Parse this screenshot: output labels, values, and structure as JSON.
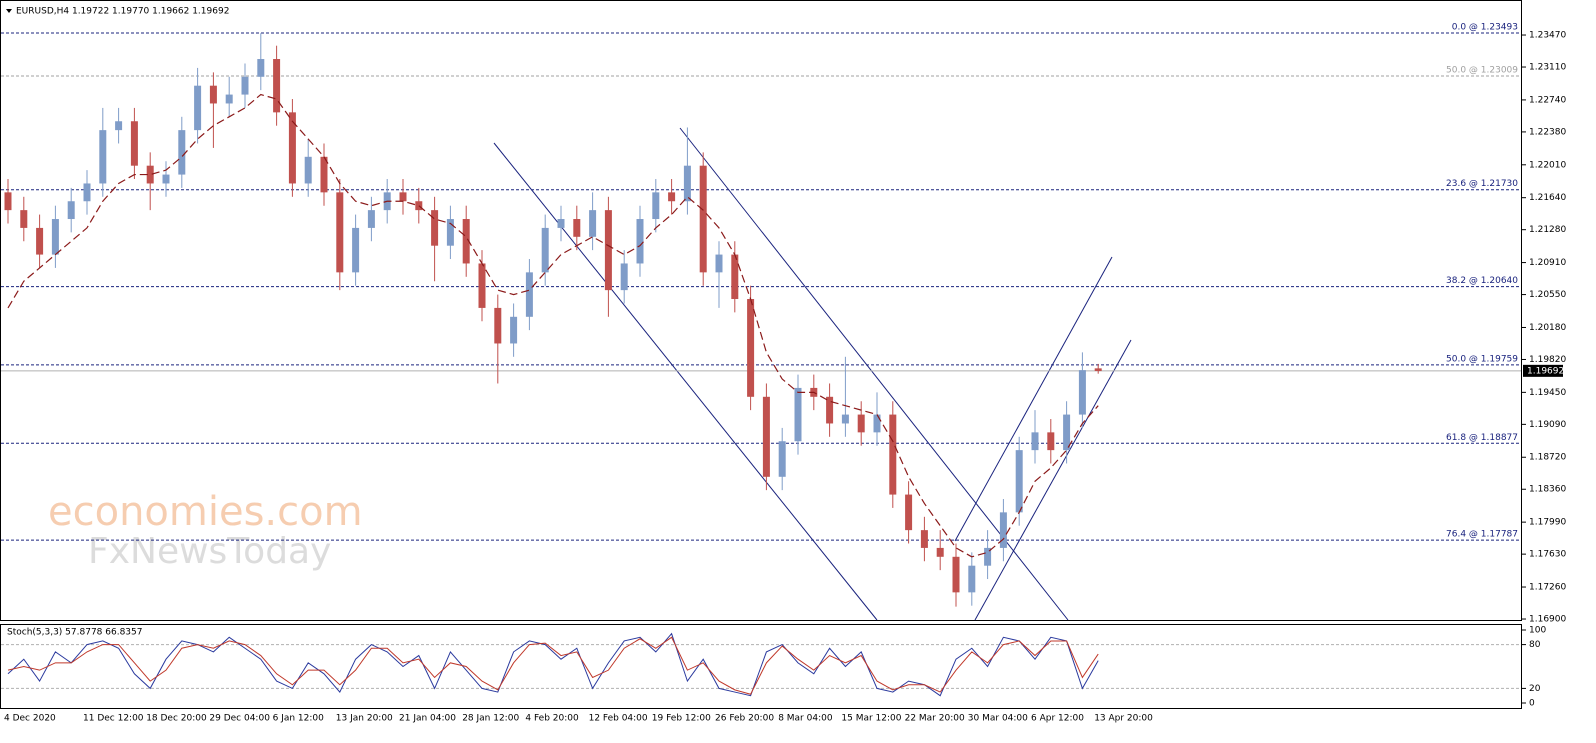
{
  "chart_data": [
    {
      "type": "candlestick",
      "title": "EURUSD,H4  1.19722 1.19770 1.19662 1.19692",
      "watermark": [
        "economies.com",
        "FxNewsToday"
      ],
      "categories": [
        "4 Dec 2020",
        null,
        null,
        null,
        null,
        "11 Dec 12:00",
        null,
        null,
        null,
        "18 Dec 20:00",
        null,
        null,
        null,
        "29 Dec 04:00",
        null,
        null,
        null,
        "6 Jan 12:00",
        null,
        null,
        null,
        "13 Jan 20:00",
        null,
        null,
        null,
        "21 Jan 04:00",
        null,
        null,
        null,
        "28 Jan 12:00",
        null,
        null,
        null,
        "4 Feb 20:00",
        null,
        null,
        null,
        "12 Feb 04:00",
        null,
        null,
        null,
        "19 Feb 12:00",
        null,
        null,
        null,
        "26 Feb 20:00",
        null,
        null,
        null,
        "8 Mar 04:00",
        null,
        null,
        null,
        "15 Mar 12:00",
        null,
        null,
        null,
        "22 Mar 20:00",
        null,
        null,
        null,
        "30 Mar 04:00",
        null,
        null,
        null,
        "6 Apr 12:00",
        null,
        null,
        null,
        "13 Apr 20:00"
      ],
      "open": [
        1.217,
        1.215,
        1.213,
        1.21,
        1.214,
        1.216,
        1.218,
        1.224,
        1.225,
        1.22,
        1.218,
        1.219,
        1.224,
        1.229,
        1.227,
        1.228,
        1.23,
        1.232,
        1.226,
        1.218,
        1.221,
        1.217,
        1.208,
        1.213,
        1.215,
        1.217,
        1.216,
        1.215,
        1.211,
        1.214,
        1.209,
        1.204,
        1.2,
        1.203,
        1.208,
        1.213,
        1.214,
        1.212,
        1.215,
        1.206,
        1.209,
        1.214,
        1.217,
        1.216,
        1.22,
        1.208,
        1.21,
        1.205,
        1.194,
        1.185,
        1.189,
        1.195,
        1.194,
        1.191,
        1.192,
        1.19,
        1.192,
        1.183,
        1.179,
        1.177,
        1.176,
        1.172,
        1.175,
        1.177,
        1.181,
        1.188,
        1.19,
        1.188,
        1.192,
        1.1972
      ],
      "high": [
        1.2185,
        1.2165,
        1.2145,
        1.2155,
        1.2175,
        1.2195,
        1.2265,
        1.2265,
        1.2265,
        1.2215,
        1.2205,
        1.2255,
        1.231,
        1.2305,
        1.23,
        1.2315,
        1.2349,
        1.2335,
        1.2275,
        1.223,
        1.2225,
        1.2185,
        1.2145,
        1.2165,
        1.2185,
        1.2185,
        1.2175,
        1.2165,
        1.2155,
        1.2155,
        1.2105,
        1.2055,
        1.2045,
        1.2095,
        1.2145,
        1.2155,
        1.2155,
        1.217,
        1.2165,
        1.2105,
        1.2155,
        1.2185,
        1.2185,
        1.2243,
        1.2215,
        1.2115,
        1.2115,
        1.2065,
        1.1955,
        1.1905,
        1.1965,
        1.1965,
        1.1955,
        1.1985,
        1.1935,
        1.1945,
        1.1935,
        1.1845,
        1.1805,
        1.179,
        1.1775,
        1.1765,
        1.179,
        1.1825,
        1.1895,
        1.1925,
        1.1915,
        1.1935,
        1.199,
        1.1977
      ],
      "low": [
        1.2135,
        1.2115,
        1.2085,
        1.2085,
        1.2125,
        1.2145,
        1.2165,
        1.2225,
        1.2185,
        1.215,
        1.2165,
        1.2175,
        1.2225,
        1.222,
        1.2255,
        1.2265,
        1.2285,
        1.2245,
        1.2165,
        1.2165,
        1.2155,
        1.206,
        1.2065,
        1.2115,
        1.2135,
        1.2145,
        1.2135,
        1.207,
        1.2095,
        1.2075,
        1.2025,
        1.1955,
        1.1985,
        1.2015,
        1.2065,
        1.2115,
        1.2105,
        1.2105,
        1.203,
        1.2045,
        1.2075,
        1.2125,
        1.2145,
        1.2145,
        1.2065,
        1.204,
        1.2035,
        1.1925,
        1.1835,
        1.1835,
        1.1875,
        1.1925,
        1.1895,
        1.1895,
        1.1885,
        1.1885,
        1.1815,
        1.1775,
        1.1755,
        1.1745,
        1.1704,
        1.1705,
        1.1735,
        1.1755,
        1.1795,
        1.1865,
        1.1865,
        1.1865,
        1.1905,
        1.1966
      ],
      "close": [
        1.215,
        1.213,
        1.21,
        1.214,
        1.216,
        1.218,
        1.224,
        1.225,
        1.22,
        1.218,
        1.219,
        1.224,
        1.229,
        1.227,
        1.228,
        1.23,
        1.232,
        1.226,
        1.218,
        1.221,
        1.217,
        1.208,
        1.213,
        1.215,
        1.217,
        1.216,
        1.215,
        1.211,
        1.214,
        1.209,
        1.204,
        1.2,
        1.203,
        1.208,
        1.213,
        1.214,
        1.212,
        1.215,
        1.206,
        1.209,
        1.214,
        1.217,
        1.216,
        1.22,
        1.208,
        1.21,
        1.205,
        1.194,
        1.185,
        1.189,
        1.195,
        1.194,
        1.191,
        1.192,
        1.19,
        1.192,
        1.183,
        1.179,
        1.177,
        1.176,
        1.172,
        1.175,
        1.177,
        1.181,
        1.188,
        1.19,
        1.188,
        1.192,
        1.197,
        1.1969
      ],
      "up_color": "#7f9cc8",
      "down_color": "#c0504d",
      "moving_average": {
        "color": "#8b1a1a",
        "values": [
          1.204,
          1.207,
          1.2085,
          1.21,
          1.2115,
          1.213,
          1.216,
          1.218,
          1.219,
          1.219,
          1.2195,
          1.221,
          1.223,
          1.2245,
          1.2255,
          1.2265,
          1.228,
          1.2275,
          1.225,
          1.223,
          1.221,
          1.218,
          1.216,
          1.2155,
          1.216,
          1.216,
          1.2155,
          1.214,
          1.2135,
          1.212,
          1.209,
          1.206,
          1.2055,
          1.206,
          1.208,
          1.21,
          1.211,
          1.212,
          1.211,
          1.21,
          1.211,
          1.213,
          1.2145,
          1.2165,
          1.215,
          1.213,
          1.21,
          1.205,
          1.199,
          1.196,
          1.1945,
          1.1945,
          1.1935,
          1.193,
          1.1925,
          1.192,
          1.189,
          1.185,
          1.182,
          1.1795,
          1.177,
          1.176,
          1.1765,
          1.178,
          1.181,
          1.1845,
          1.186,
          1.188,
          1.191,
          1.193
        ]
      },
      "ylim": [
        1.16889,
        1.23819
      ],
      "yticks": [
        {
          "value": 1.2347,
          "label": "1.23470"
        },
        {
          "value": 1.2311,
          "label": "1.23110"
        },
        {
          "value": 1.2274,
          "label": "1.22740"
        },
        {
          "value": 1.2238,
          "label": "1.22380"
        },
        {
          "value": 1.2201,
          "label": "1.22010"
        },
        {
          "value": 1.2164,
          "label": "1.21640"
        },
        {
          "value": 1.2128,
          "label": "1.21280"
        },
        {
          "value": 1.2091,
          "label": "1.20910"
        },
        {
          "value": 1.2055,
          "label": "1.20550"
        },
        {
          "value": 1.2018,
          "label": "1.20180"
        },
        {
          "value": 1.1982,
          "label": "1.19820"
        },
        {
          "value": 1.1945,
          "label": "1.19450"
        },
        {
          "value": 1.1909,
          "label": "1.19090"
        },
        {
          "value": 1.1872,
          "label": "1.18720"
        },
        {
          "value": 1.1836,
          "label": "1.18360"
        },
        {
          "value": 1.1799,
          "label": "1.17990"
        },
        {
          "value": 1.1763,
          "label": "1.17630"
        },
        {
          "value": 1.1726,
          "label": "1.17260"
        },
        {
          "value": 1.169,
          "label": "1.16900"
        }
      ],
      "levels": [
        {
          "value": 1.23493,
          "label": "0.0 @ 1.23493",
          "color": "#1a237e"
        },
        {
          "value": 1.23009,
          "label": "50.0 @ 1.23009",
          "color": "#a0a0a0"
        },
        {
          "value": 1.2173,
          "label": "23.6 @ 1.21730",
          "color": "#1a237e"
        },
        {
          "value": 1.2064,
          "label": "38.2 @ 1.20640",
          "color": "#1a237e"
        },
        {
          "value": 1.19759,
          "label": "50.0 @ 1.19759",
          "color": "#1a237e"
        },
        {
          "value": 1.18877,
          "label": "61.8 @ 1.18877",
          "color": "#1a237e"
        },
        {
          "value": 1.17787,
          "label": "76.4 @ 1.17787",
          "color": "#1a237e"
        }
      ],
      "last_price": {
        "value": 1.19692,
        "label": "1.19692"
      }
    },
    {
      "type": "line",
      "title": "Stoch(5,3,3) 57.8778 66.8357",
      "series": [
        {
          "color": "#2b3a9e",
          "values": [
            40,
            60,
            30,
            70,
            55,
            80,
            85,
            75,
            40,
            20,
            60,
            85,
            80,
            70,
            90,
            75,
            60,
            30,
            20,
            55,
            40,
            15,
            60,
            80,
            70,
            50,
            65,
            20,
            70,
            45,
            20,
            15,
            70,
            85,
            80,
            60,
            75,
            20,
            55,
            85,
            90,
            70,
            95,
            30,
            60,
            20,
            15,
            10,
            70,
            80,
            55,
            40,
            75,
            50,
            70,
            20,
            15,
            30,
            25,
            10,
            60,
            75,
            50,
            90,
            85,
            60,
            90,
            85,
            20,
            58
          ]
        },
        {
          "color": "#c0392b",
          "values": [
            45,
            50,
            45,
            55,
            55,
            70,
            80,
            80,
            55,
            30,
            45,
            75,
            80,
            75,
            85,
            80,
            65,
            40,
            25,
            45,
            45,
            25,
            45,
            75,
            75,
            55,
            60,
            35,
            55,
            50,
            30,
            18,
            55,
            80,
            82,
            65,
            70,
            35,
            45,
            75,
            88,
            75,
            90,
            45,
            55,
            30,
            18,
            12,
            55,
            78,
            60,
            45,
            65,
            55,
            65,
            30,
            18,
            25,
            25,
            15,
            45,
            70,
            55,
            80,
            85,
            65,
            85,
            85,
            35,
            67
          ]
        }
      ],
      "ylim": [
        0,
        100
      ],
      "yticks": [
        100,
        80,
        20,
        0
      ],
      "levels": [
        80,
        20
      ]
    }
  ]
}
